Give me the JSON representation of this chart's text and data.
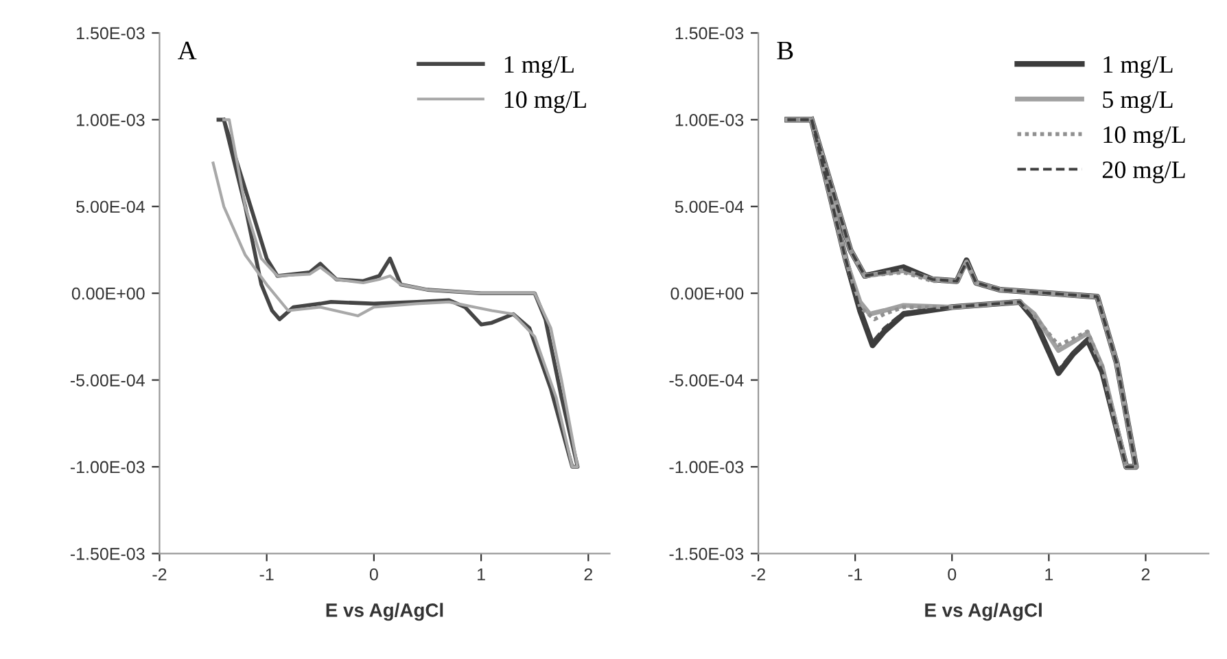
{
  "chart_data": [
    {
      "type": "line",
      "annotations": [
        "A"
      ],
      "xlabel": "E vs Ag/AgCl",
      "xlim": [
        -2,
        2.2
      ],
      "xticks": [
        -2,
        -1,
        0,
        1,
        2
      ],
      "ylim": [
        -0.0015,
        0.0015
      ],
      "yticks": [
        {
          "value": -0.0015,
          "label": "-1.50E-03"
        },
        {
          "value": -0.001,
          "label": "-1.00E-03"
        },
        {
          "value": -0.0005,
          "label": "-5.00E-04"
        },
        {
          "value": 0,
          "label": "0.00E+00"
        },
        {
          "value": 0.0005,
          "label": "5.00E-04"
        },
        {
          "value": 0.001,
          "label": "1.00E-03"
        },
        {
          "value": 0.0015,
          "label": "1.50E-03"
        }
      ],
      "grid": false,
      "legend": "top right",
      "series": [
        {
          "name": "1 mg/L",
          "color": "#454545",
          "line_style": "solid",
          "x": [
            -1.45,
            -1.4,
            -1.2,
            -1.05,
            -0.95,
            -0.88,
            -0.75,
            -0.5,
            -0.4,
            0,
            0.4,
            0.7,
            0.85,
            1.0,
            1.1,
            1.3,
            1.45,
            1.65,
            1.85,
            1.9,
            1.75,
            1.6,
            1.5,
            1.0,
            0.5,
            0.25,
            0.15,
            0.05,
            -0.1,
            -0.35,
            -0.5,
            -0.6,
            -0.9,
            -1.0,
            -1.2,
            -1.4
          ],
          "values": [
            0.001,
            0.001,
            0.0005,
            5e-05,
            -0.0001,
            -0.00015,
            -8e-05,
            -6e-05,
            -5e-05,
            -6e-05,
            -5e-05,
            -4e-05,
            -8e-05,
            -0.00018,
            -0.00017,
            -0.00012,
            -0.0002,
            -0.00055,
            -0.001,
            -0.001,
            -0.0006,
            -0.00015,
            0,
            0,
            2e-05,
            5e-05,
            0.0002,
            0.0001,
            7e-05,
            8e-05,
            0.00017,
            0.00012,
            0.0001,
            0.0002,
            0.0006,
            0.001
          ]
        },
        {
          "name": "10 mg/L",
          "color": "#a8a8a8",
          "line_style": "solid",
          "x": [
            -1.5,
            -1.4,
            -1.2,
            -1.0,
            -0.8,
            -0.5,
            -0.15,
            0,
            0.4,
            0.7,
            1.1,
            1.3,
            1.5,
            1.7,
            1.85,
            1.9,
            1.75,
            1.65,
            1.5,
            1.0,
            0.5,
            0.25,
            0.15,
            0.05,
            -0.1,
            -0.35,
            -0.5,
            -0.6,
            -0.9,
            -1.05,
            -1.2,
            -1.35,
            -1.4
          ],
          "values": [
            0.00075,
            0.0005,
            0.00022,
            5e-05,
            -0.0001,
            -8e-05,
            -0.00013,
            -8e-05,
            -6e-05,
            -5e-05,
            -0.0001,
            -0.00012,
            -0.00025,
            -0.0006,
            -0.001,
            -0.001,
            -0.0005,
            -0.0002,
            0,
            0,
            2e-05,
            5e-05,
            0.0001,
            8e-05,
            6e-05,
            8e-05,
            0.00015,
            0.00011,
            0.0001,
            0.0002,
            0.0005,
            0.001,
            0.001
          ]
        }
      ]
    },
    {
      "type": "line",
      "annotations": [
        "B"
      ],
      "xlabel": "E vs Ag/AgCl",
      "xlim": [
        -2,
        2.65
      ],
      "xticks": [
        -2,
        -1,
        0,
        1,
        2
      ],
      "ylim": [
        -0.0015,
        0.0015
      ],
      "yticks": [
        {
          "value": -0.0015,
          "label": "-1.50E-03"
        },
        {
          "value": -0.001,
          "label": "-1.00E-03"
        },
        {
          "value": -0.0005,
          "label": "-5.00E-04"
        },
        {
          "value": 0,
          "label": "0.00E+00"
        },
        {
          "value": 0.0005,
          "label": "5.00E-04"
        },
        {
          "value": 0.001,
          "label": "1.00E-03"
        },
        {
          "value": 0.0015,
          "label": "1.50E-03"
        }
      ],
      "grid": false,
      "legend": "top right",
      "series": [
        {
          "name": "1 mg/L",
          "color": "#3c3c3c",
          "line_style": "solid",
          "x": [
            -1.7,
            -1.45,
            -1.1,
            -0.95,
            -0.82,
            -0.7,
            -0.5,
            0,
            0.7,
            0.85,
            1.1,
            1.25,
            1.4,
            1.55,
            1.8,
            1.9,
            1.7,
            1.5,
            1.0,
            0.5,
            0.25,
            0.15,
            0.05,
            -0.2,
            -0.5,
            -0.9,
            -1.05,
            -1.45
          ],
          "values": [
            0.001,
            0.001,
            0.0002,
            -0.0001,
            -0.0003,
            -0.00022,
            -0.00012,
            -8e-05,
            -5e-05,
            -0.00015,
            -0.00046,
            -0.00035,
            -0.00027,
            -0.00045,
            -0.001,
            -0.001,
            -0.0004,
            -2e-05,
            0,
            2e-05,
            6e-05,
            0.00019,
            7e-05,
            8e-05,
            0.00015,
            0.0001,
            0.00025,
            0.001
          ]
        },
        {
          "name": "5 mg/L",
          "color": "#a0a0a0",
          "line_style": "solid",
          "x": [
            -1.7,
            -1.45,
            -1.1,
            -0.95,
            -0.85,
            -0.7,
            -0.5,
            0,
            0.7,
            0.85,
            1.1,
            1.25,
            1.4,
            1.55,
            1.8,
            1.9,
            1.7,
            1.5,
            1.0,
            0.5,
            0.25,
            0.15,
            0.05,
            -0.2,
            -0.5,
            -0.9,
            -1.05,
            -1.45
          ],
          "values": [
            0.001,
            0.001,
            0.0002,
            -5e-05,
            -0.00012,
            -0.0001,
            -7e-05,
            -8e-05,
            -5e-05,
            -0.00012,
            -0.00033,
            -0.00028,
            -0.00023,
            -0.00042,
            -0.001,
            -0.001,
            -0.0004,
            -2e-05,
            0,
            2e-05,
            6e-05,
            0.00018,
            7e-05,
            8e-05,
            0.00013,
            0.0001,
            0.00025,
            0.001
          ]
        },
        {
          "name": "10 mg/L",
          "color": "#909090",
          "line_style": "dotted",
          "x": [
            -1.7,
            -1.45,
            -1.1,
            -0.95,
            -0.8,
            -0.7,
            -0.5,
            0,
            0.7,
            0.85,
            1.1,
            1.25,
            1.4,
            1.55,
            1.8,
            1.9,
            1.7,
            1.5,
            1.0,
            0.5,
            0.25,
            0.15,
            0.05,
            -0.2,
            -0.5,
            -0.9,
            -1.05,
            -1.45
          ],
          "values": [
            0.001,
            0.001,
            0.0002,
            -8e-05,
            -0.00015,
            -0.00012,
            -8e-05,
            -8e-05,
            -5e-05,
            -0.00013,
            -0.0003,
            -0.00026,
            -0.00022,
            -0.00042,
            -0.001,
            -0.001,
            -0.0004,
            -2e-05,
            0,
            2e-05,
            6e-05,
            0.00017,
            7e-05,
            7e-05,
            0.00012,
            0.0001,
            0.00025,
            0.001
          ]
        },
        {
          "name": "20 mg/L",
          "color": "#404040",
          "line_style": "dashed",
          "x": [
            -1.7,
            -1.45,
            -1.1,
            -0.95,
            -0.82,
            -0.7,
            -0.5,
            0,
            0.7,
            0.85,
            1.1,
            1.25,
            1.4,
            1.55,
            1.8,
            1.9,
            1.7,
            1.5,
            1.0,
            0.5,
            0.25,
            0.15,
            0.05,
            -0.2,
            -0.5,
            -0.9,
            -1.05,
            -1.45
          ],
          "values": [
            0.001,
            0.001,
            0.0002,
            -0.0001,
            -0.00028,
            -0.0002,
            -0.00011,
            -8e-05,
            -5e-05,
            -0.00015,
            -0.00044,
            -0.00034,
            -0.00026,
            -0.00045,
            -0.001,
            -0.001,
            -0.0004,
            -2e-05,
            0,
            2e-05,
            6e-05,
            0.00018,
            7e-05,
            8e-05,
            0.00014,
            0.0001,
            0.00025,
            0.001
          ]
        }
      ]
    }
  ]
}
